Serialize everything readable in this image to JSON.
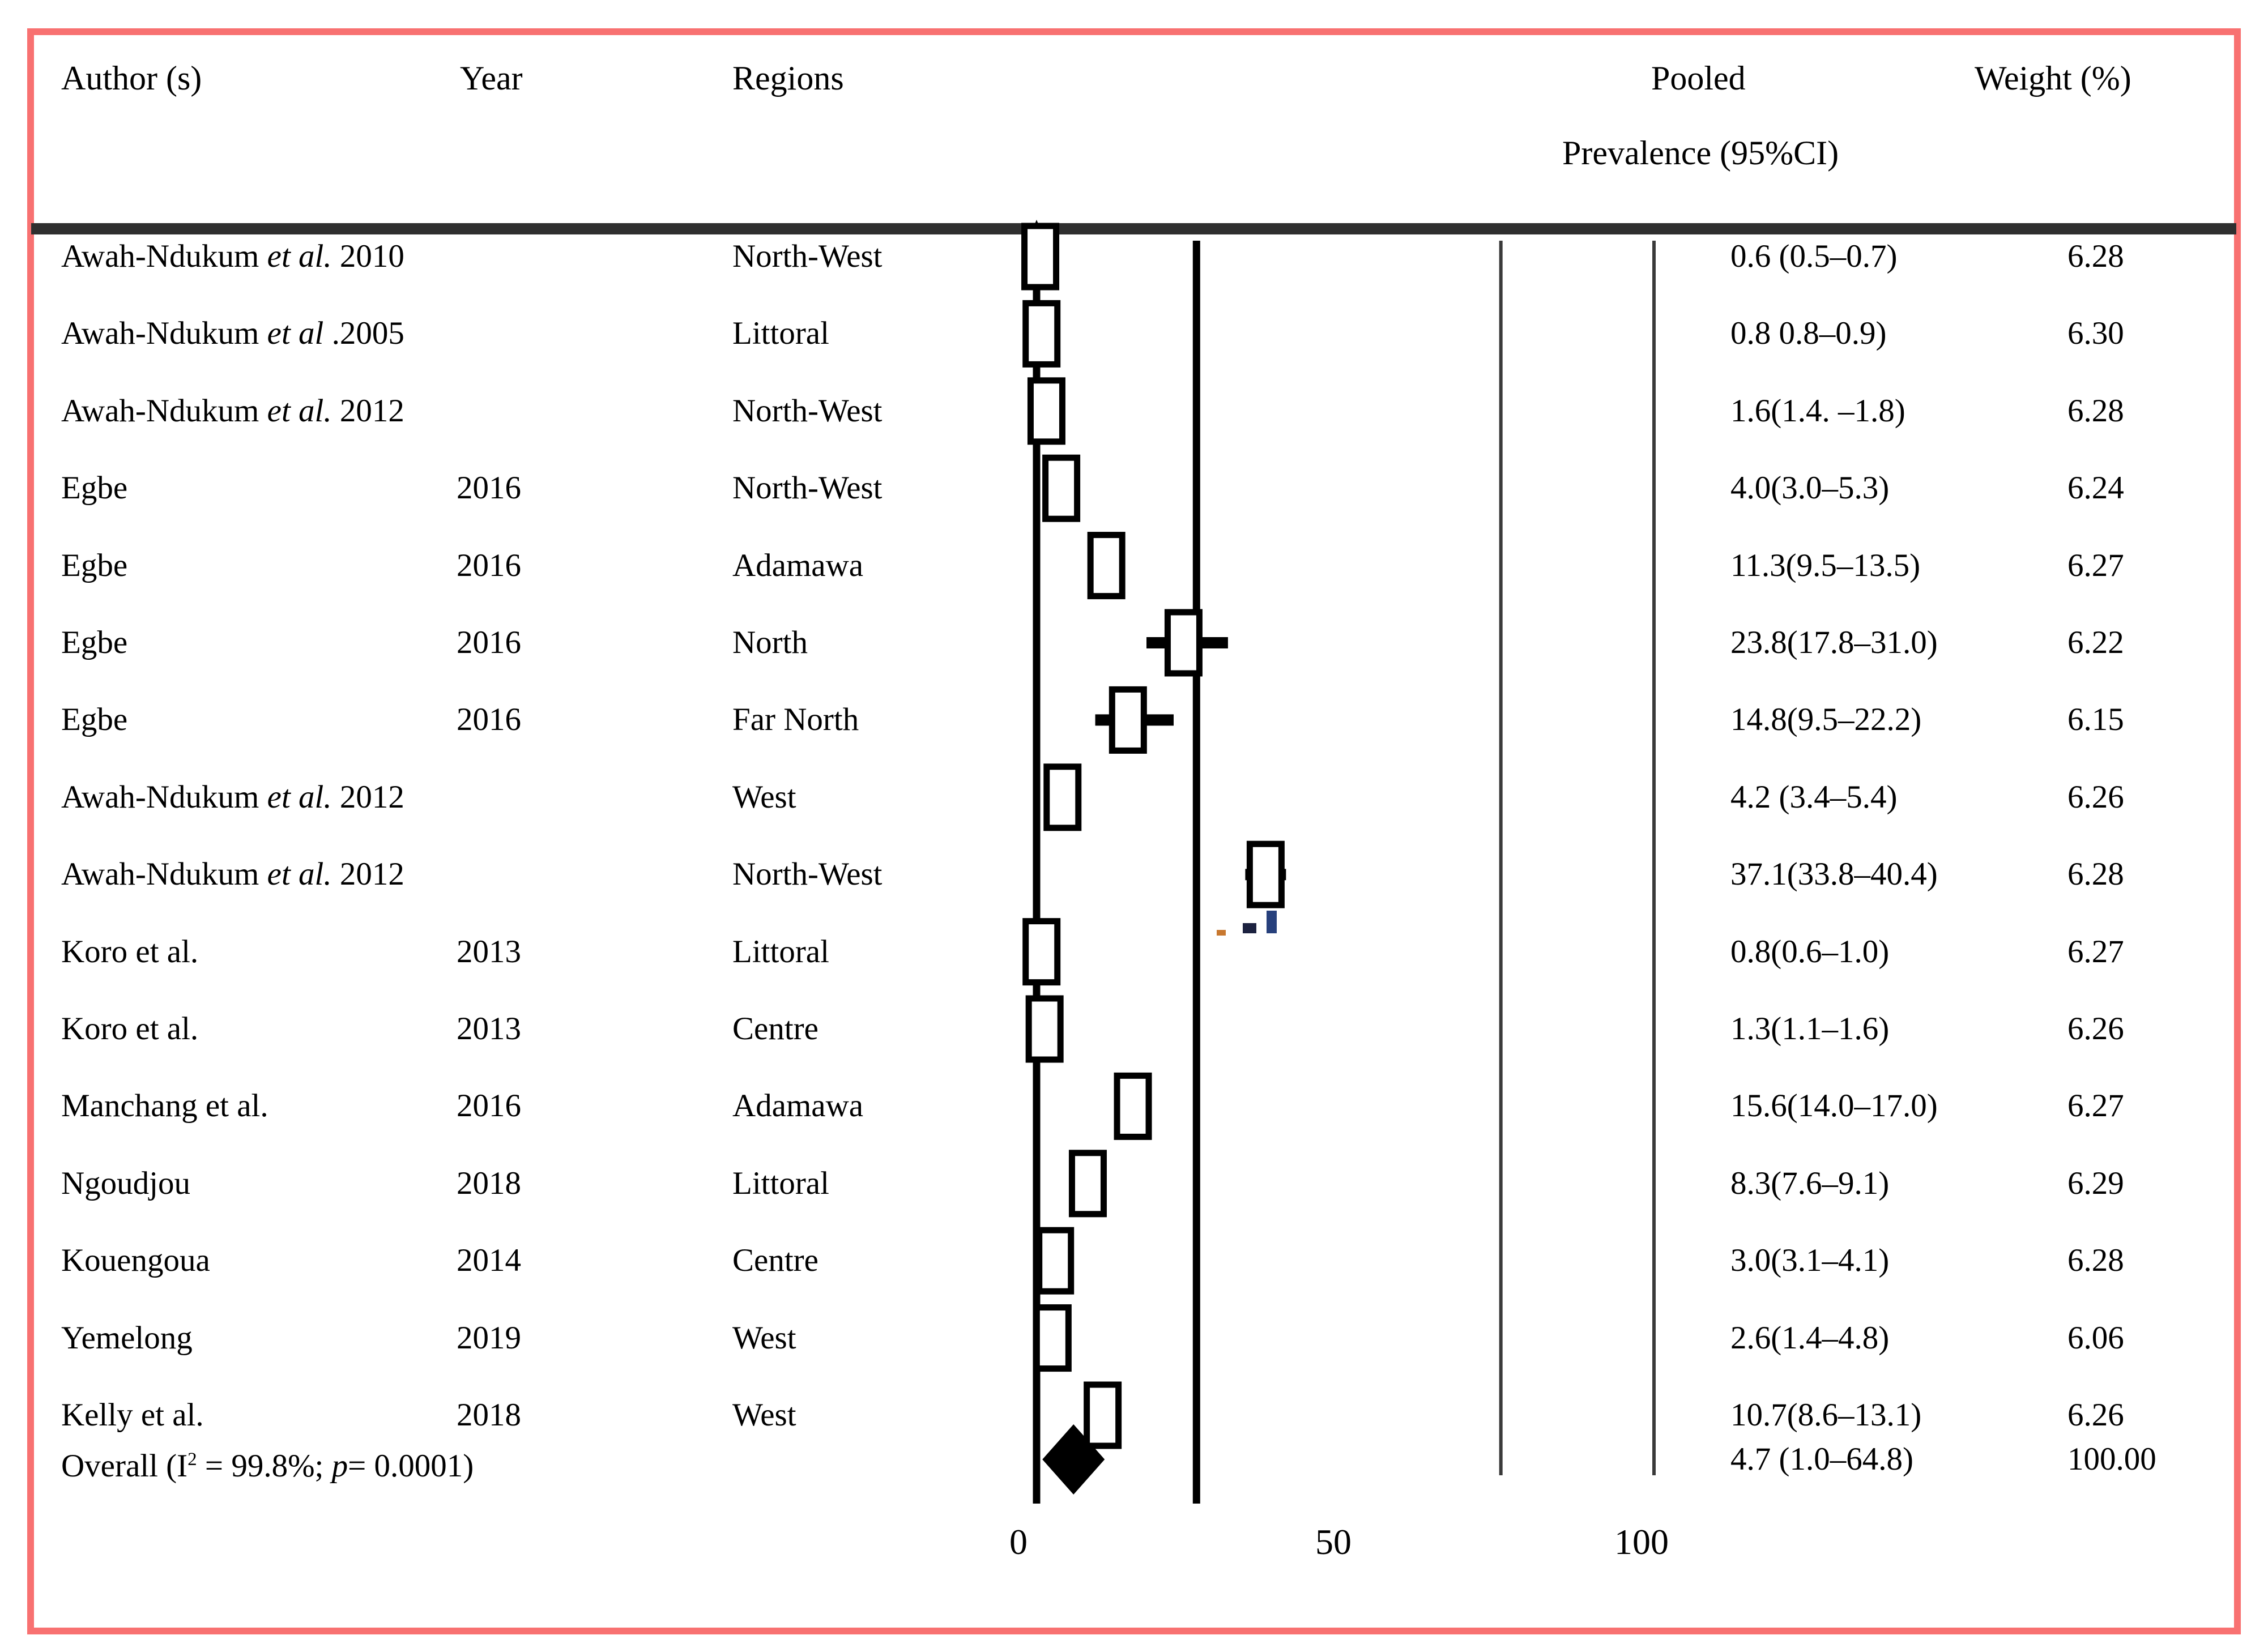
{
  "figure": {
    "header": {
      "author": "Author (s)",
      "year": "Year",
      "regions": "Regions",
      "pooled_line1": "Pooled",
      "pooled_line2": "Prevalence (95%CI)",
      "weight": "Weight (%)"
    },
    "colors": {
      "frame_border": "#f87171",
      "header_rule": "#2f2f2f",
      "line_thick": "#000000",
      "line_thin": "#3a3a3a",
      "box_fill": "#ffffff",
      "box_stroke": "#000000",
      "diamond": "#000000",
      "text": "#000000"
    }
  },
  "chart_data": {
    "type": "scatter",
    "variant": "forest-plot-prevalence",
    "title": "",
    "xlabel": "",
    "ylabel": "",
    "xlim": [
      0,
      100
    ],
    "x_ticks": [
      0,
      50,
      100
    ],
    "x_tick_labels": [
      "0",
      "50",
      "100"
    ],
    "grid": false,
    "legend": "none",
    "axis_lines": [
      {
        "value": 0,
        "style": "thick"
      },
      {
        "value": 25.9,
        "style": "thick"
      },
      {
        "value": 75.2,
        "style": "thin"
      },
      {
        "value": 100,
        "style": "thin"
      }
    ],
    "studies": [
      {
        "author": "Awah-Ndukum",
        "etal": "et al.",
        "author_tail": "2010",
        "year": "",
        "region": "North-West",
        "prevalence_text": "0.6 (0.5–0.7)",
        "weight_text": "6.28",
        "value": 0.6,
        "ci_low": 0.5,
        "ci_high": 0.7
      },
      {
        "author": "Awah-Ndukum",
        "etal": "et al",
        "author_tail": ".2005",
        "year": "",
        "region": "Littoral",
        "prevalence_text": "0.8 0.8–0.9)",
        "weight_text": "6.30",
        "value": 0.8,
        "ci_low": 0.8,
        "ci_high": 0.9
      },
      {
        "author": "Awah-Ndukum",
        "etal": "et al.",
        "author_tail": "2012",
        "year": "",
        "region": "North-West",
        "prevalence_text": "1.6(1.4. –1.8)",
        "weight_text": "6.28",
        "value": 1.6,
        "ci_low": 1.4,
        "ci_high": 1.8
      },
      {
        "author": "Egbe",
        "etal": "",
        "author_tail": "",
        "year": "2016",
        "region": "North-West",
        "prevalence_text": "4.0(3.0–5.3)",
        "weight_text": "6.24",
        "value": 4.0,
        "ci_low": 3.0,
        "ci_high": 5.3
      },
      {
        "author": "Egbe",
        "etal": "",
        "author_tail": "",
        "year": "2016",
        "region": "Adamawa",
        "prevalence_text": "11.3(9.5–13.5)",
        "weight_text": "6.27",
        "value": 11.3,
        "ci_low": 9.5,
        "ci_high": 13.5
      },
      {
        "author": "Egbe",
        "etal": "",
        "author_tail": "",
        "year": "2016",
        "region": "North",
        "prevalence_text": "23.8(17.8–31.0)",
        "weight_text": "6.22",
        "value": 23.8,
        "ci_low": 17.8,
        "ci_high": 31.0
      },
      {
        "author": "Egbe",
        "etal": "",
        "author_tail": "",
        "year": "2016",
        "region": "Far North",
        "prevalence_text": "14.8(9.5–22.2)",
        "weight_text": "6.15",
        "value": 14.8,
        "ci_low": 9.5,
        "ci_high": 22.2
      },
      {
        "author": "Awah-Ndukum",
        "etal": "et al.",
        "author_tail": "2012",
        "year": "",
        "region": "West",
        "prevalence_text": "4.2 (3.4–5.4)",
        "weight_text": "6.26",
        "value": 4.2,
        "ci_low": 3.4,
        "ci_high": 5.4
      },
      {
        "author": "Awah-Ndukum",
        "etal": "et al.",
        "author_tail": "2012",
        "year": "",
        "region": "North-West",
        "prevalence_text": "37.1(33.8–40.4)",
        "weight_text": "6.28",
        "value": 37.1,
        "ci_low": 33.8,
        "ci_high": 40.4
      },
      {
        "author": "Koro et al.",
        "etal": "",
        "author_tail": "",
        "year": "2013",
        "region": "Littoral",
        "prevalence_text": "0.8(0.6–1.0)",
        "weight_text": "6.27",
        "value": 0.8,
        "ci_low": 0.6,
        "ci_high": 1.0
      },
      {
        "author": "Koro et al.",
        "etal": "",
        "author_tail": "",
        "year": "2013",
        "region": "Centre",
        "prevalence_text": "1.3(1.1–1.6)",
        "weight_text": "6.26",
        "value": 1.3,
        "ci_low": 1.1,
        "ci_high": 1.6
      },
      {
        "author": "Manchang et al.",
        "etal": "",
        "author_tail": "",
        "year": "2016",
        "region": "Adamawa",
        "prevalence_text": "15.6(14.0–17.0)",
        "weight_text": "6.27",
        "value": 15.6,
        "ci_low": 14.0,
        "ci_high": 17.0
      },
      {
        "author": "Ngoudjou",
        "etal": "",
        "author_tail": "",
        "year": "2018",
        "region": "Littoral",
        "prevalence_text": "8.3(7.6–9.1)",
        "weight_text": "6.29",
        "value": 8.3,
        "ci_low": 7.6,
        "ci_high": 9.1
      },
      {
        "author": "Kouengoua",
        "etal": "",
        "author_tail": "",
        "year": "2014",
        "region": "Centre",
        "prevalence_text": "3.0(3.1–4.1)",
        "weight_text": "6.28",
        "value": 3.0,
        "ci_low": 3.1,
        "ci_high": 4.1
      },
      {
        "author": "Yemelong",
        "etal": "",
        "author_tail": "",
        "year": "2019",
        "region": "West",
        "prevalence_text": "2.6(1.4–4.8)",
        "weight_text": "6.06",
        "value": 2.6,
        "ci_low": 1.4,
        "ci_high": 4.8
      },
      {
        "author": "Kelly et al.",
        "etal": "",
        "author_tail": "",
        "year": "2018",
        "region": "West",
        "prevalence_text": "10.7(8.6–13.1)",
        "weight_text": "6.26",
        "value": 10.7,
        "ci_low": 8.6,
        "ci_high": 13.1
      }
    ],
    "overall": {
      "label_prefix": "Overall (I",
      "label_sup": "2",
      "label_mid": " = 99.8%; ",
      "label_p": "p",
      "label_end": "= 0.0001)",
      "i_squared": "99.8%",
      "p_value": "0.0001",
      "prevalence_text": "4.7 (1.0–64.8)",
      "weight_text": "100.00",
      "value": 4.7,
      "ci_low": 1.0,
      "ci_high": 64.8
    },
    "artifact_dashes": [
      {
        "x": 2148,
        "y": 1642,
        "w": 16,
        "h": 10,
        "color": "#c8782f"
      },
      {
        "x": 2194,
        "y": 1630,
        "w": 24,
        "h": 18,
        "color": "#1c2240"
      },
      {
        "x": 2236,
        "y": 1608,
        "w": 18,
        "h": 40,
        "color": "#27407c"
      }
    ]
  }
}
